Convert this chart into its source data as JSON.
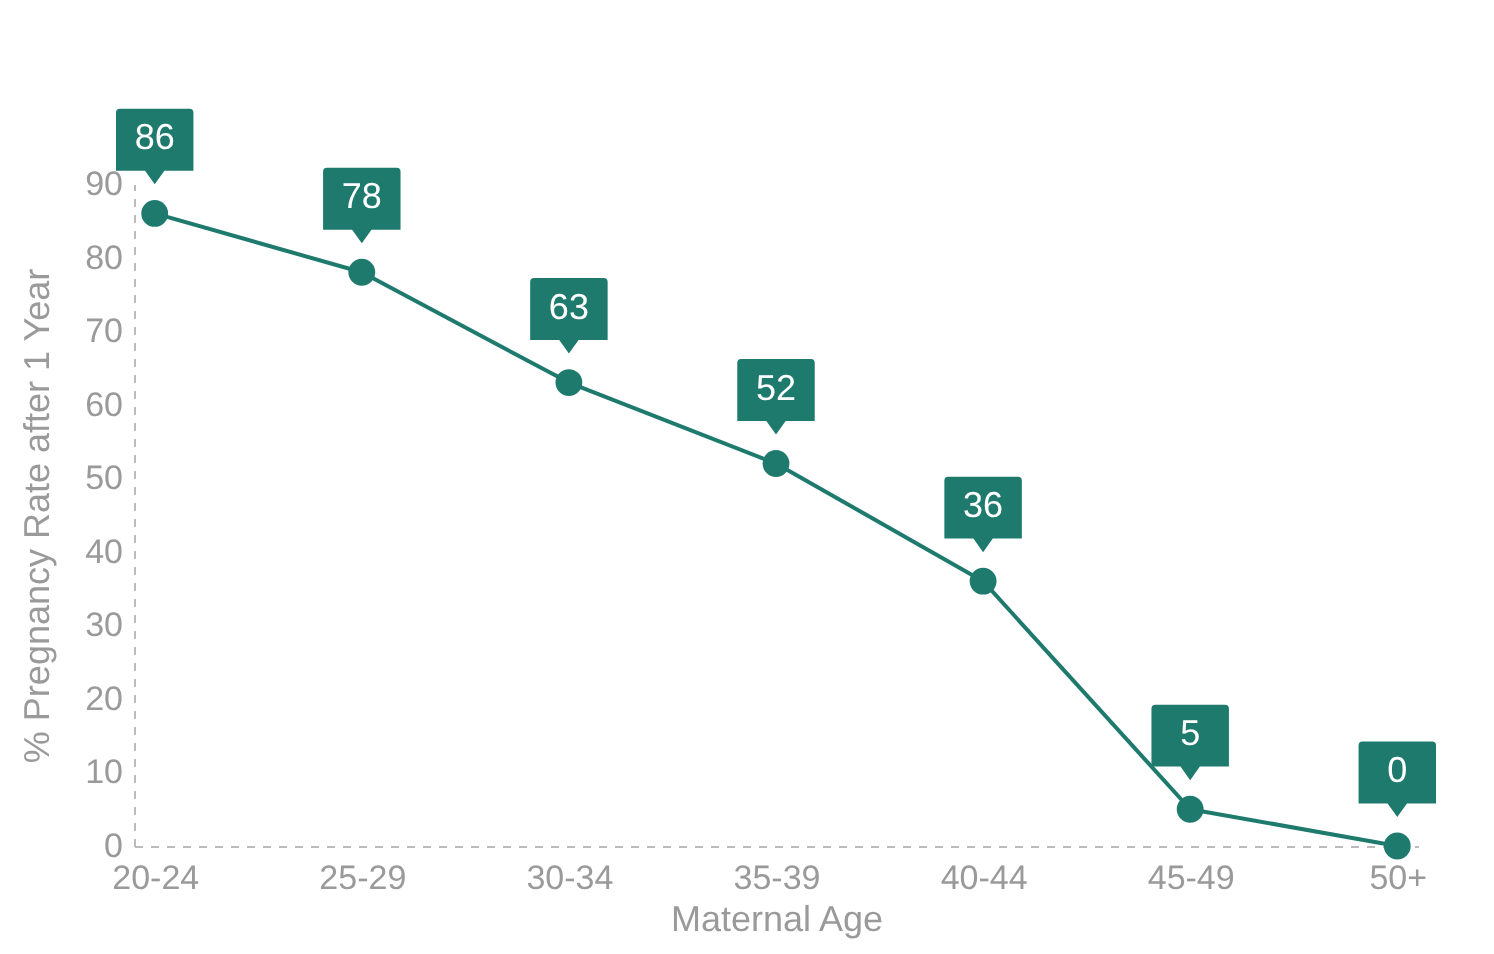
{
  "chart_data": {
    "type": "line",
    "xlabel": "Maternal Age",
    "ylabel": "% Pregnancy Rate after 1 Year",
    "categories": [
      "20-24",
      "25-29",
      "30-34",
      "35-39",
      "40-44",
      "45-49",
      "50+"
    ],
    "series": [
      {
        "color": "#1f7a6e",
        "values": [
          86,
          78,
          63,
          52,
          36,
          5,
          0
        ]
      }
    ],
    "ylim": [
      0,
      90
    ],
    "yticks": [
      0,
      10,
      20,
      30,
      40,
      50,
      60,
      70,
      80,
      90
    ],
    "grid": false,
    "marker": "circle",
    "line_style": "solid",
    "data_labels": true
  }
}
